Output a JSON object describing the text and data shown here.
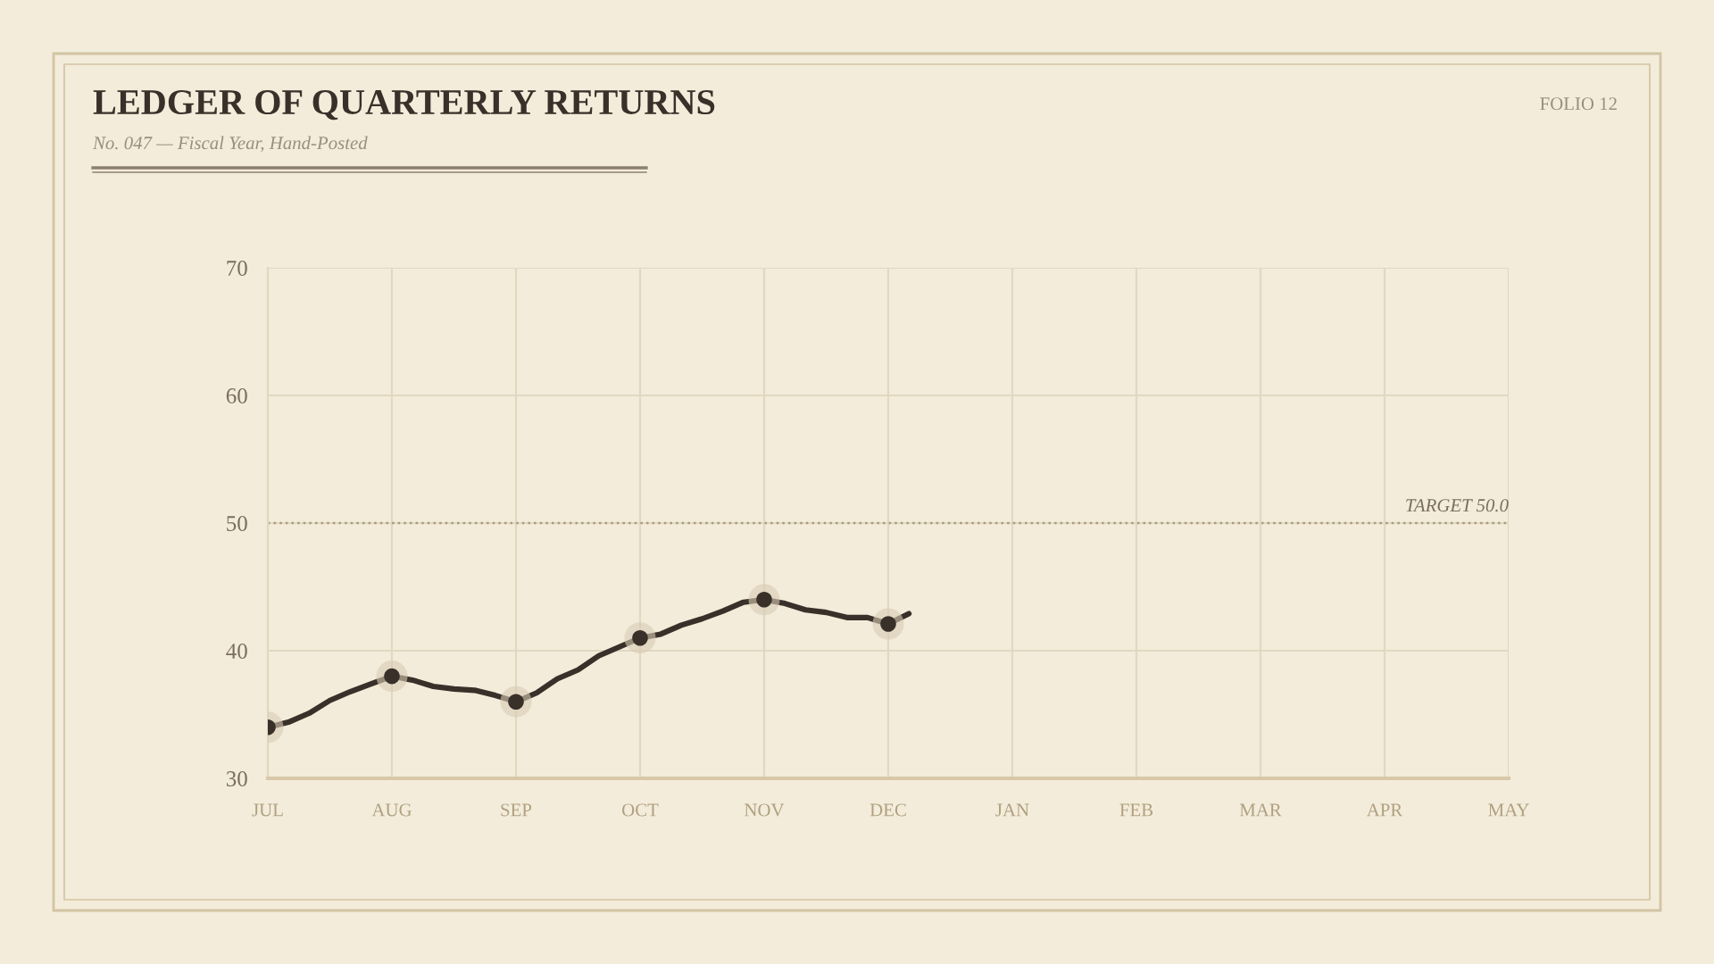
{
  "chart_data": {
    "type": "line",
    "title": "LEDGER OF QUARTERLY RETURNS",
    "subtitle": "No. 047 — Fiscal Year, Hand-Posted",
    "annotations": [
      "FOLIO 12"
    ],
    "categories": [
      "JUL",
      null,
      null,
      null,
      null,
      null,
      "AUG",
      null,
      null,
      null,
      null,
      null,
      "SEP",
      null,
      null,
      null,
      null,
      null,
      "OCT",
      null,
      null,
      null,
      null,
      null,
      "NOV",
      null,
      null,
      null,
      null,
      null,
      "DEC",
      null,
      null,
      null,
      null,
      null,
      "JAN",
      null,
      null,
      null,
      null,
      null,
      "FEB",
      null,
      null,
      null,
      null,
      null,
      "MAR",
      null,
      null,
      null,
      null,
      null,
      "APR",
      null,
      null,
      null,
      null,
      null,
      "MAY"
    ],
    "ylim": [
      30,
      70
    ],
    "yticks": [
      30,
      40,
      50,
      60,
      70
    ],
    "grid": true,
    "ref_lines": [
      {
        "axis": "y",
        "value": 50,
        "label": "TARGET 50.0",
        "color": "#a89a80",
        "line_style": "dotted"
      }
    ],
    "series": [
      {
        "color": "#3a302a",
        "marker": "none",
        "values": [
          34.0,
          34.4,
          35.1,
          36.1,
          36.8,
          37.4,
          38.0,
          37.7,
          37.2,
          37.0,
          36.9,
          36.5,
          36.0,
          36.7,
          37.8,
          38.5,
          39.6,
          40.3,
          41.0,
          41.3,
          42.0,
          42.5,
          43.1,
          43.8,
          44.0,
          43.7,
          43.2,
          43.0,
          42.6,
          42.6,
          42.1,
          42.9,
          null,
          null,
          null,
          null,
          null,
          null,
          null,
          null,
          null,
          null,
          null,
          null,
          null,
          null,
          null,
          null,
          null,
          null,
          null,
          null,
          null,
          null,
          null,
          null,
          null,
          null,
          null,
          null,
          null
        ]
      },
      {
        "type": "scatter",
        "color": "#3a302a",
        "marker": "circle",
        "values": [
          34.0,
          null,
          null,
          null,
          null,
          null,
          38.0,
          null,
          null,
          null,
          null,
          null,
          36.0,
          null,
          null,
          null,
          null,
          null,
          41.0,
          null,
          null,
          null,
          null,
          null,
          44.0,
          null,
          null,
          null,
          null,
          null,
          42.1,
          null,
          null,
          null,
          null,
          null,
          null,
          null,
          null,
          null,
          null,
          null,
          null,
          null,
          null,
          null,
          null,
          null,
          null,
          null,
          null,
          null,
          null,
          null,
          null,
          null,
          null,
          null,
          null,
          null,
          null
        ]
      }
    ]
  }
}
